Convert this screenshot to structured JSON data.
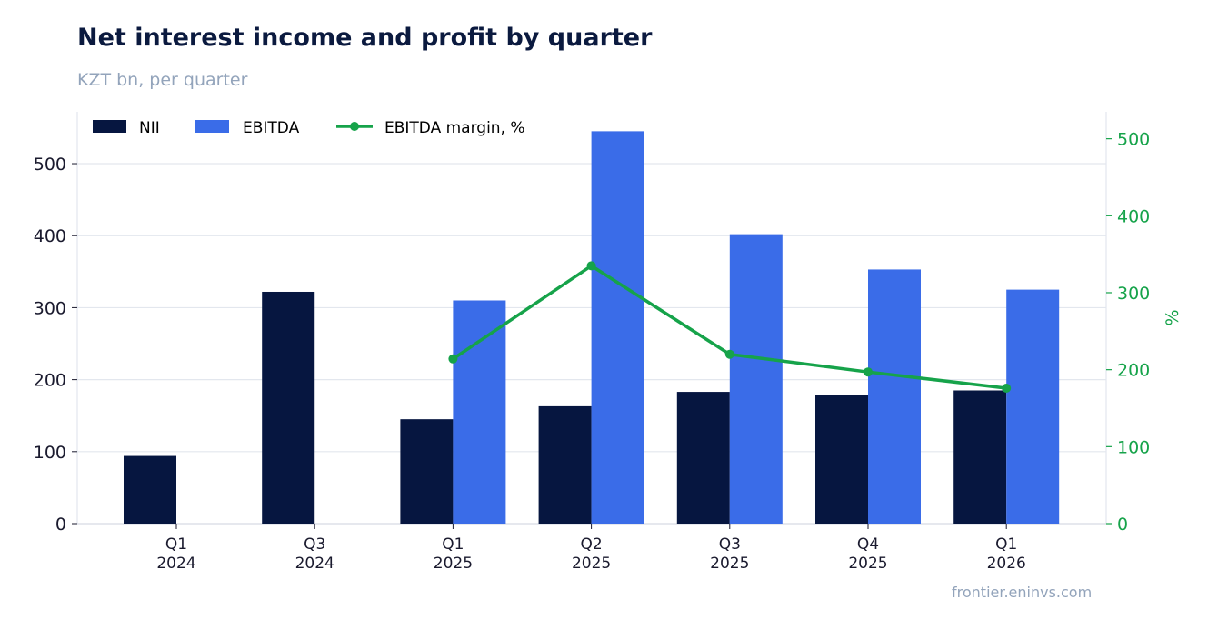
{
  "title": "Net interest income and profit by quarter",
  "subtitle": "KZT bn, per quarter",
  "source": "frontier.eninvs.com",
  "colors": {
    "nii": "#061640",
    "ebitda": "#3a6ce8",
    "margin": "#16a34a",
    "grid": "#e3e7ee",
    "text": "#1a1a2e"
  },
  "chart_data": {
    "type": "bar",
    "categories": [
      [
        "Q1",
        "2024"
      ],
      [
        "Q3",
        "2024"
      ],
      [
        "Q1",
        "2025"
      ],
      [
        "Q2",
        "2025"
      ],
      [
        "Q3",
        "2025"
      ],
      [
        "Q4",
        "2025"
      ],
      [
        "Q1",
        "2026"
      ]
    ],
    "series": [
      {
        "name": "NII",
        "type": "bar",
        "axis": "left",
        "values": [
          94,
          322,
          145,
          163,
          183,
          179,
          185
        ]
      },
      {
        "name": "EBITDA",
        "type": "bar",
        "axis": "left",
        "values": [
          null,
          null,
          310,
          545,
          402,
          353,
          325
        ]
      },
      {
        "name": "EBITDA margin, %",
        "type": "line",
        "axis": "right",
        "values": [
          null,
          null,
          214,
          335,
          220,
          197,
          176
        ]
      }
    ],
    "y_left": {
      "label": "",
      "ylim": [
        0,
        572
      ],
      "ticks": [
        0,
        100,
        200,
        300,
        400,
        500
      ]
    },
    "y_right": {
      "label": "%",
      "ylim": [
        0,
        535
      ],
      "ticks": [
        0,
        100,
        200,
        300,
        400,
        500
      ]
    },
    "grid": true,
    "legend": "top-left"
  }
}
